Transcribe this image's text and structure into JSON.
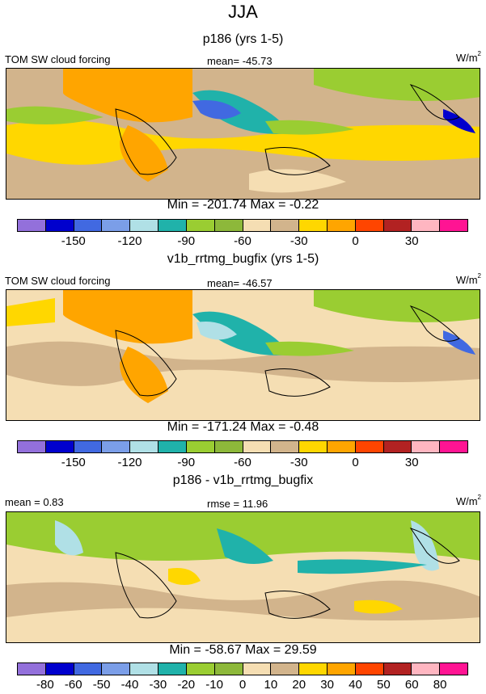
{
  "title": "JJA",
  "palette": [
    "#9370DB",
    "#0000CD",
    "#4169E1",
    "#7B9EE8",
    "#B0E0E6",
    "#20B2AA",
    "#9ACD32",
    "#8DB83A",
    "#F5DEB3",
    "#D2B48C",
    "#FFD700",
    "#FFA500",
    "#FF4500",
    "#B22222",
    "#FFB6C1",
    "#FF1493"
  ],
  "panels": [
    {
      "title": "p186 (yrs 1-5)",
      "left_label": "TOM SW cloud forcing",
      "center_label": "mean= -45.73",
      "units": "W/m",
      "units_sup": "2",
      "minmax": "Min = -201.74 Max =  -0.22",
      "ticks": [
        "-150",
        "-120",
        "-90",
        "-60",
        "-30",
        "0",
        "30"
      ]
    },
    {
      "title": "v1b_rrtmg_bugfix (yrs 1-5)",
      "left_label": "TOM SW cloud forcing",
      "center_label": "mean= -46.57",
      "units": "W/m",
      "units_sup": "2",
      "minmax": "Min = -171.24 Max =  -0.48",
      "ticks": [
        "-150",
        "-120",
        "-90",
        "-60",
        "-30",
        "0",
        "30"
      ]
    },
    {
      "title": "p186 - v1b_rrtmg_bugfix",
      "left_label": "mean =   0.83",
      "center_label": "rmse =  11.96",
      "units": "W/m",
      "units_sup": "2",
      "minmax": "Min = -58.67 Max =  29.59",
      "ticks": [
        "-80",
        "-60",
        "-50",
        "-40",
        "-30",
        "-20",
        "-10",
        "0",
        "10",
        "20",
        "30",
        "40",
        "50",
        "60",
        "80"
      ]
    }
  ],
  "chart_data": [
    {
      "type": "heatmap",
      "title": "p186 (yrs 1-5)",
      "variable": "TOM SW cloud forcing",
      "units": "W/m2",
      "mean": -45.73,
      "min": -201.74,
      "max": -0.22,
      "colorbar_ticks": [
        -150,
        -120,
        -90,
        -60,
        -30,
        0,
        30
      ]
    },
    {
      "type": "heatmap",
      "title": "v1b_rrtmg_bugfix (yrs 1-5)",
      "variable": "TOM SW cloud forcing",
      "units": "W/m2",
      "mean": -46.57,
      "min": -171.24,
      "max": -0.48,
      "colorbar_ticks": [
        -150,
        -120,
        -90,
        -60,
        -30,
        0,
        30
      ]
    },
    {
      "type": "heatmap",
      "title": "p186 - v1b_rrtmg_bugfix",
      "units": "W/m2",
      "mean": 0.83,
      "rmse": 11.96,
      "min": -58.67,
      "max": 29.59,
      "colorbar_ticks": [
        -80,
        -60,
        -50,
        -40,
        -30,
        -20,
        -10,
        0,
        10,
        20,
        30,
        40,
        50,
        60,
        80
      ]
    }
  ]
}
